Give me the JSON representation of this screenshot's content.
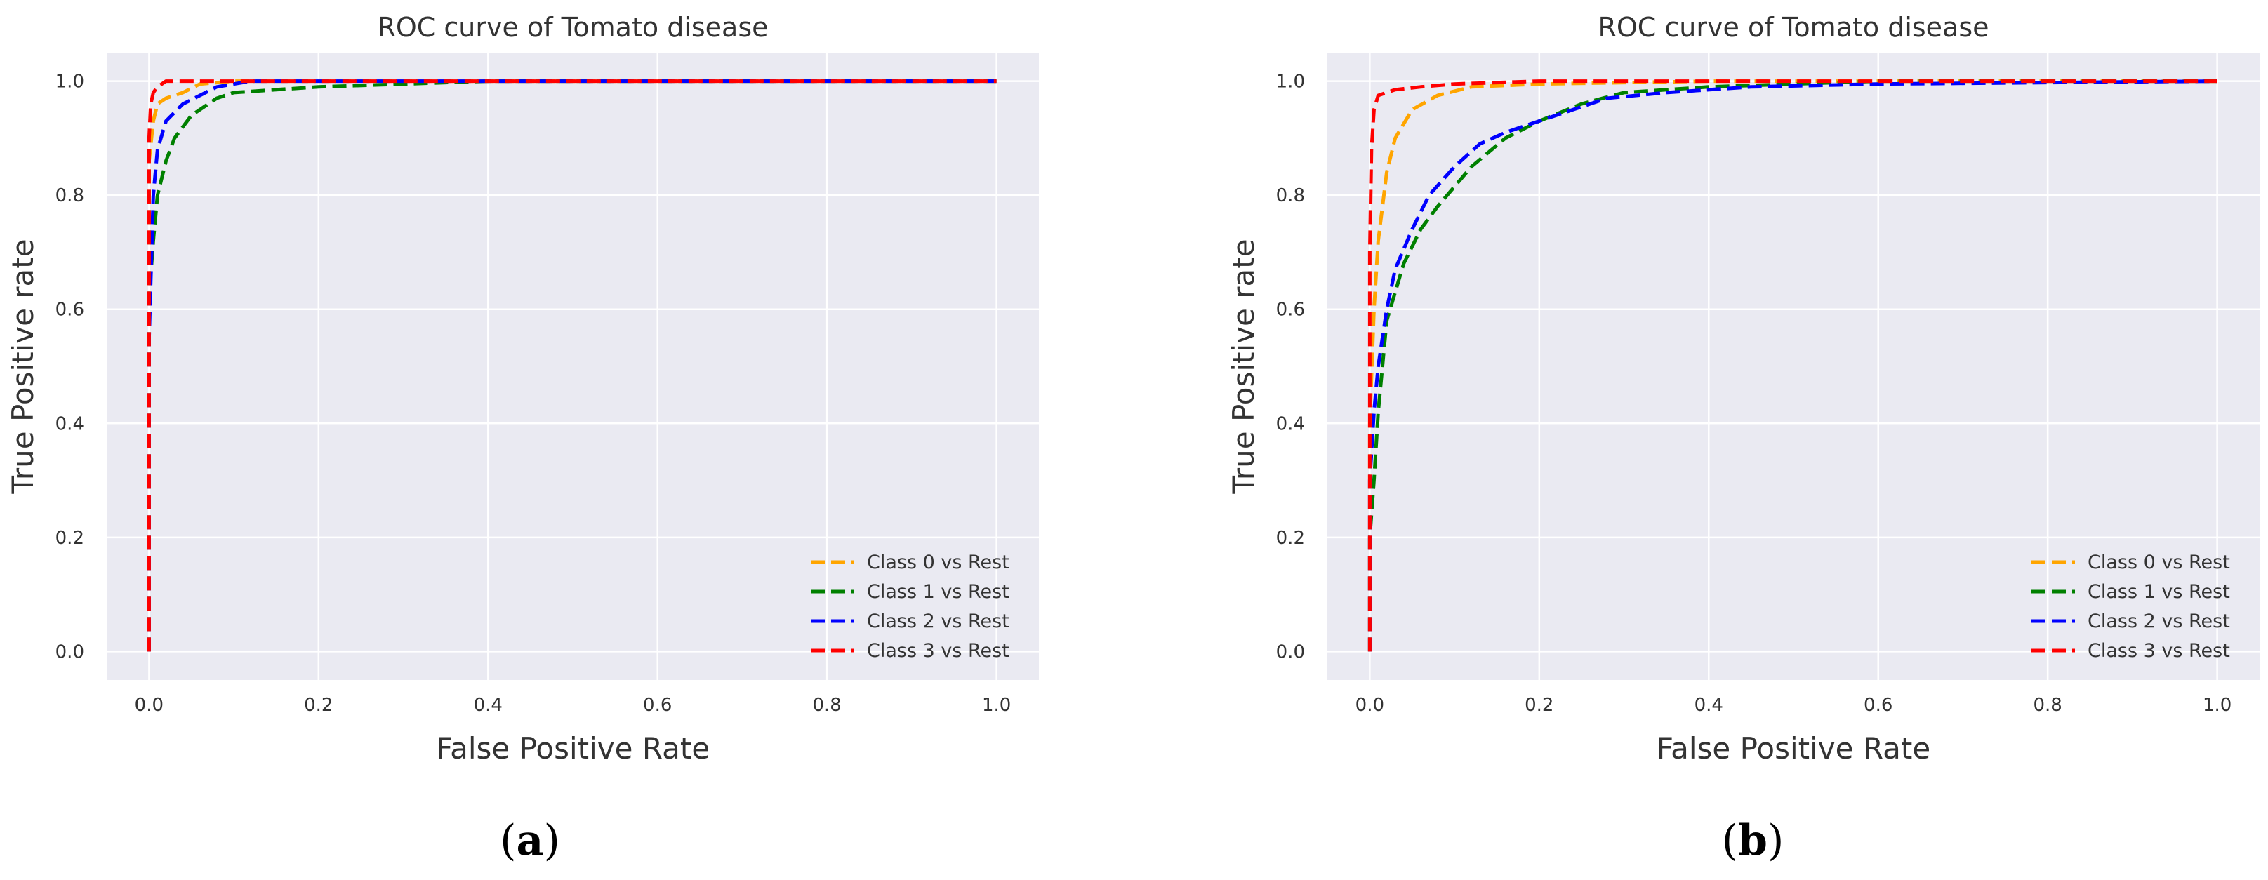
{
  "chart_data": [
    {
      "type": "line",
      "title": "ROC curve of Tomato disease",
      "xlabel": "False Positive Rate",
      "ylabel": "True Positive rate",
      "xlim": [
        -0.05,
        1.05
      ],
      "ylim": [
        -0.05,
        1.05
      ],
      "xticks": [
        0.0,
        0.2,
        0.4,
        0.6,
        0.8,
        1.0
      ],
      "xtick_labels": [
        "0.0",
        "0.2",
        "0.4",
        "0.6",
        "0.8",
        "1.0"
      ],
      "yticks": [
        0.0,
        0.2,
        0.4,
        0.6,
        0.8,
        1.0
      ],
      "ytick_labels": [
        "0.0",
        "0.2",
        "0.4",
        "0.6",
        "0.8",
        "1.0"
      ],
      "grid": true,
      "legend_position": "lower-right",
      "panel_label": "(a)",
      "series": [
        {
          "name": "Class 0 vs Rest",
          "color": "#FFA500",
          "x": [
            0,
            0,
            0.005,
            0.01,
            0.02,
            0.04,
            0.06,
            0.1,
            0.2,
            1.0
          ],
          "y": [
            0,
            0.86,
            0.93,
            0.96,
            0.97,
            0.98,
            0.995,
            1.0,
            1.0,
            1.0
          ]
        },
        {
          "name": "Class 1 vs Rest",
          "color": "#008000",
          "x": [
            0,
            0,
            0.005,
            0.01,
            0.02,
            0.03,
            0.05,
            0.08,
            0.1,
            0.15,
            0.2,
            0.3,
            0.4,
            1.0
          ],
          "y": [
            0,
            0.62,
            0.72,
            0.8,
            0.86,
            0.9,
            0.94,
            0.97,
            0.98,
            0.985,
            0.99,
            0.995,
            1.0,
            1.0
          ]
        },
        {
          "name": "Class 2 vs Rest",
          "color": "#0000FF",
          "x": [
            0,
            0,
            0.005,
            0.01,
            0.02,
            0.04,
            0.06,
            0.08,
            0.12,
            0.2,
            1.0
          ],
          "y": [
            0,
            0.55,
            0.8,
            0.88,
            0.93,
            0.96,
            0.975,
            0.99,
            1.0,
            1.0,
            1.0
          ]
        },
        {
          "name": "Class 3 vs Rest",
          "color": "#FF0000",
          "x": [
            0,
            0,
            0.002,
            0.005,
            0.01,
            0.02,
            0.04,
            0.1,
            1.0
          ],
          "y": [
            0,
            0.9,
            0.96,
            0.98,
            0.99,
            1.0,
            1.0,
            1.0,
            1.0
          ]
        }
      ]
    },
    {
      "type": "line",
      "title": "ROC curve of Tomato disease",
      "xlabel": "False Positive Rate",
      "ylabel": "True Positive rate",
      "xlim": [
        -0.05,
        1.05
      ],
      "ylim": [
        -0.05,
        1.05
      ],
      "xticks": [
        0.0,
        0.2,
        0.4,
        0.6,
        0.8,
        1.0
      ],
      "xtick_labels": [
        "0.0",
        "0.2",
        "0.4",
        "0.6",
        "0.8",
        "1.0"
      ],
      "yticks": [
        0.0,
        0.2,
        0.4,
        0.6,
        0.8,
        1.0
      ],
      "ytick_labels": [
        "0.0",
        "0.2",
        "0.4",
        "0.6",
        "0.8",
        "1.0"
      ],
      "grid": true,
      "legend_position": "lower-right",
      "panel_label": "(b)",
      "series": [
        {
          "name": "Class 0 vs Rest",
          "color": "#FFA500",
          "x": [
            0,
            0,
            0.005,
            0.01,
            0.02,
            0.03,
            0.05,
            0.08,
            0.12,
            0.2,
            0.4,
            1.0
          ],
          "y": [
            0,
            0.4,
            0.6,
            0.72,
            0.84,
            0.9,
            0.95,
            0.975,
            0.99,
            0.995,
            1.0,
            1.0
          ]
        },
        {
          "name": "Class 1 vs Rest",
          "color": "#008000",
          "x": [
            0,
            0,
            0.005,
            0.01,
            0.02,
            0.04,
            0.06,
            0.08,
            0.12,
            0.16,
            0.2,
            0.25,
            0.3,
            0.4,
            0.6,
            1.0
          ],
          "y": [
            0,
            0.2,
            0.3,
            0.42,
            0.58,
            0.68,
            0.74,
            0.78,
            0.85,
            0.9,
            0.93,
            0.96,
            0.98,
            0.99,
            1.0,
            1.0
          ]
        },
        {
          "name": "Class 2 vs Rest",
          "color": "#0000FF",
          "x": [
            0,
            0,
            0.005,
            0.01,
            0.02,
            0.03,
            0.05,
            0.07,
            0.1,
            0.13,
            0.16,
            0.2,
            0.28,
            0.35,
            0.45,
            0.6,
            1.0
          ],
          "y": [
            0,
            0.3,
            0.42,
            0.5,
            0.6,
            0.67,
            0.74,
            0.8,
            0.85,
            0.89,
            0.91,
            0.93,
            0.97,
            0.98,
            0.99,
            0.995,
            1.0
          ]
        },
        {
          "name": "Class 3 vs Rest",
          "color": "#FF0000",
          "x": [
            0,
            0,
            0.002,
            0.005,
            0.01,
            0.03,
            0.06,
            0.1,
            0.2,
            0.4,
            1.0
          ],
          "y": [
            0,
            0.7,
            0.88,
            0.95,
            0.975,
            0.985,
            0.99,
            0.995,
            1.0,
            1.0,
            1.0
          ]
        }
      ]
    }
  ]
}
